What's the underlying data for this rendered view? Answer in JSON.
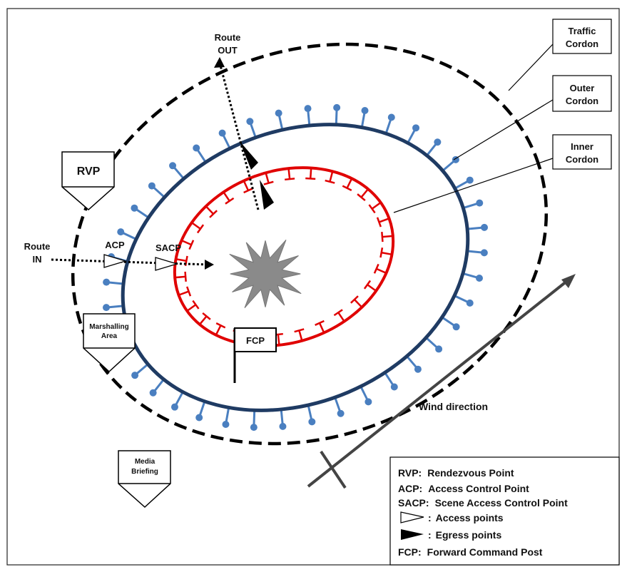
{
  "labels": {
    "traffic_cordon": [
      "Traffic",
      "Cordon"
    ],
    "outer_cordon": [
      "Outer",
      "Cordon"
    ],
    "inner_cordon": [
      "Inner",
      "Cordon"
    ],
    "route_out": [
      "Route",
      "OUT"
    ],
    "route_in": [
      "Route",
      "IN"
    ],
    "rvp": "RVP",
    "acp": "ACP",
    "sacp": "SACP",
    "fcp": "FCP",
    "marshalling_area": [
      "Marshalling",
      "Area"
    ],
    "media_briefing": [
      "Media",
      "Briefing"
    ],
    "wind_direction": "Wind direction"
  },
  "legend": {
    "items": [
      {
        "key": "RVP:",
        "text": "Rendezvous Point"
      },
      {
        "key": "ACP:",
        "text": "Access Control Point"
      },
      {
        "key": "SACP:",
        "text": "Scene Access Control Point"
      },
      {
        "key": ":",
        "text": "Access points",
        "symbol": "open-triangle"
      },
      {
        "key": ":",
        "text": "Egress points",
        "symbol": "filled-triangle"
      },
      {
        "key": "FCP:",
        "text": "Forward Command Post"
      }
    ]
  },
  "colors": {
    "traffic_cordon": "#000000",
    "outer_cordon": "#1f3b63",
    "outer_pins": "#4a7fc0",
    "inner_cordon": "#e00000",
    "incident": "#8a8a8a"
  }
}
